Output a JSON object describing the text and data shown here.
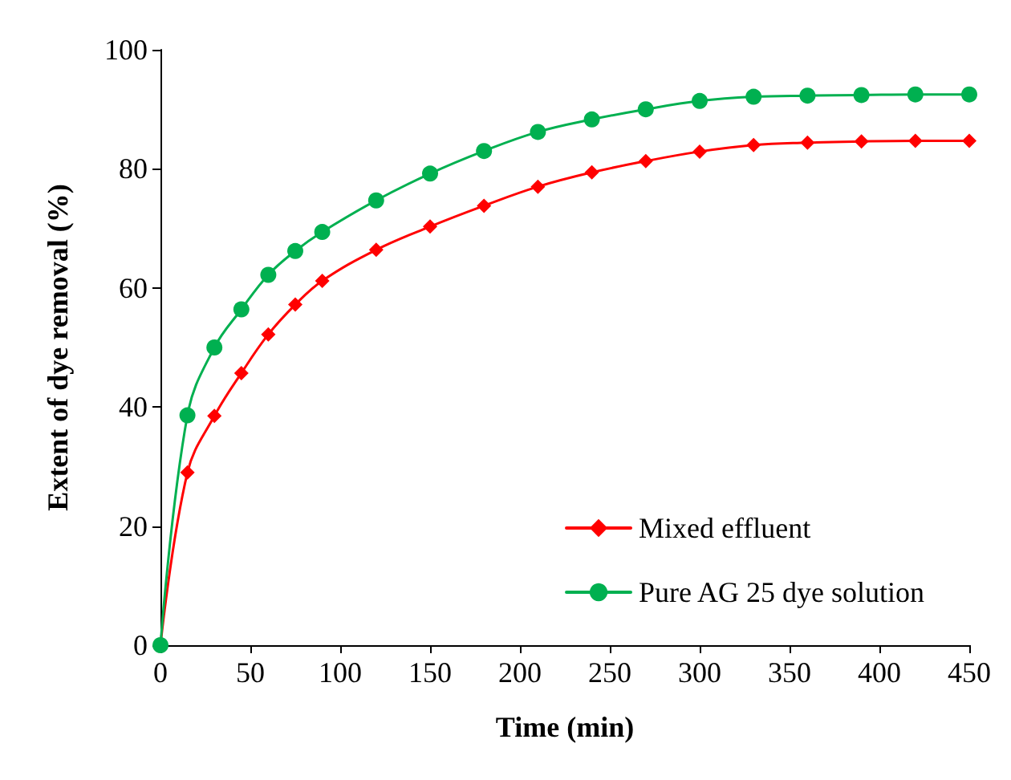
{
  "chart_data": {
    "type": "line",
    "xlabel": "Time (min)",
    "ylabel": "Extent of dye removal (%)",
    "x": [
      0,
      15,
      30,
      45,
      60,
      75,
      90,
      120,
      150,
      180,
      210,
      240,
      270,
      300,
      330,
      360,
      390,
      420,
      450
    ],
    "series": [
      {
        "name": "Mixed effluent",
        "color": "#ff0000",
        "marker": "diamond",
        "values": [
          0,
          29,
          38.5,
          45.7,
          52.2,
          57.2,
          61.2,
          66.4,
          70.3,
          73.8,
          77,
          79.4,
          81.3,
          82.9,
          84,
          84.4,
          84.6,
          84.7,
          84.7
        ]
      },
      {
        "name": "Pure AG 25 dye solution",
        "color": "#00b050",
        "marker": "circle",
        "values": [
          0,
          38.6,
          50,
          56.4,
          62.2,
          66.2,
          69.4,
          74.7,
          79.2,
          83,
          86.2,
          88.3,
          90,
          91.4,
          92.1,
          92.3,
          92.4,
          92.5,
          92.5
        ]
      }
    ],
    "xlim": [
      0,
      450
    ],
    "xticks": [
      0,
      50,
      100,
      150,
      200,
      250,
      300,
      350,
      400,
      450
    ],
    "ylim": [
      0,
      100
    ],
    "yticks": [
      0,
      20,
      40,
      60,
      80,
      100
    ],
    "grid": false,
    "legend": "bottom right",
    "line_style": "solid"
  }
}
